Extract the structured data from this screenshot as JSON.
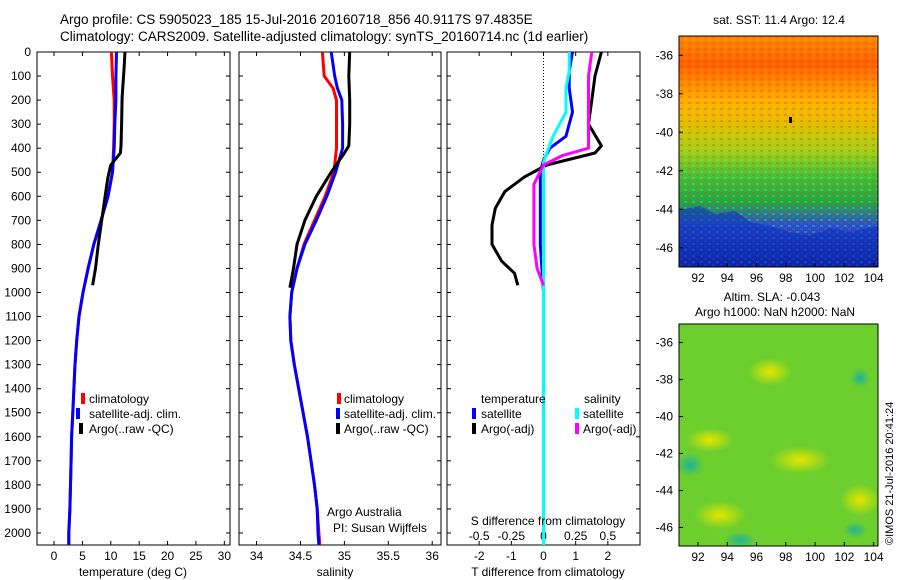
{
  "header": {
    "line1": "Argo profile: CS 5905023_185 15-Jul-2016 20160718_856 40.9117S 97.4835E",
    "line2": "Climatology: CARS2009. Satellite-adjusted climatology: synTS_20160714.nc (1d earlier)"
  },
  "depth_ticks": [
    "0",
    "100",
    "200",
    "300",
    "400",
    "500",
    "600",
    "700",
    "800",
    "900",
    "1000",
    "1100",
    "1200",
    "1300",
    "1400",
    "1500",
    "1600",
    "1700",
    "1800",
    "1900",
    "2000"
  ],
  "colors": {
    "climatology": "#ff0000",
    "satellite": "#0000ff",
    "argo": "#000000",
    "sat_salinity": "#00ffff",
    "argo_salinity": "#ff00ff"
  },
  "panel_notes": {
    "argo_australia": "Argo Australia",
    "pi": "PI: Susan Wijffels"
  },
  "map_sst": {
    "title": "sat. SST: 11.4 Argo: 12.4",
    "lat_ticks": [
      "-36",
      "-38",
      "-40",
      "-42",
      "-44",
      "-46"
    ],
    "lon_ticks": [
      "92",
      "94",
      "96",
      "98",
      "100",
      "102",
      "104"
    ]
  },
  "map_sla": {
    "title1": "Altim. SLA: -0.043",
    "title2": "Argo h1000: NaN h2000: NaN",
    "lat_ticks": [
      "-36",
      "-38",
      "-40",
      "-42",
      "-44",
      "-46"
    ],
    "lon_ticks": [
      "92",
      "94",
      "96",
      "98",
      "100",
      "102",
      "104"
    ]
  },
  "stamp": "©IMOS 21-Jul-2016 20:41:24",
  "chart_data": [
    {
      "type": "line",
      "xlabel": "temperature (deg C)",
      "ylabel": "",
      "xlim": [
        -3,
        31
      ],
      "ylim": [
        2050,
        0
      ],
      "x_ticks": [
        "0",
        "5",
        "10",
        "15",
        "20",
        "25",
        "30"
      ],
      "legend": [
        "climatology",
        "satellite-adj. clim.",
        "Argo(..raw -QC)"
      ],
      "series": [
        {
          "name": "climatology",
          "color": "#ff0000",
          "points": [
            [
              10.1,
              0
            ],
            [
              10.3,
              100
            ],
            [
              10.6,
              200
            ],
            [
              10.6,
              300
            ],
            [
              10.5,
              400
            ],
            [
              10.3,
              500
            ],
            [
              9.5,
              600
            ],
            [
              8.3,
              700
            ],
            [
              7.0,
              800
            ],
            [
              6.0,
              900
            ],
            [
              5.1,
              1000
            ],
            [
              4.4,
              1100
            ],
            [
              4.0,
              1200
            ],
            [
              3.7,
              1300
            ],
            [
              3.5,
              1400
            ],
            [
              3.3,
              1500
            ],
            [
              3.1,
              1600
            ],
            [
              3.0,
              1700
            ],
            [
              2.9,
              1800
            ],
            [
              2.8,
              1900
            ],
            [
              2.6,
              2000
            ],
            [
              2.6,
              2050
            ]
          ]
        },
        {
          "name": "satellite-adj. clim.",
          "color": "#0000ff",
          "points": [
            [
              11.0,
              0
            ],
            [
              10.9,
              100
            ],
            [
              10.9,
              200
            ],
            [
              10.7,
              300
            ],
            [
              10.6,
              400
            ],
            [
              10.3,
              500
            ],
            [
              9.5,
              600
            ],
            [
              8.3,
              700
            ],
            [
              7.0,
              800
            ],
            [
              6.0,
              900
            ],
            [
              5.1,
              1000
            ],
            [
              4.4,
              1100
            ],
            [
              4.0,
              1200
            ],
            [
              3.7,
              1300
            ],
            [
              3.5,
              1400
            ],
            [
              3.3,
              1500
            ],
            [
              3.1,
              1600
            ],
            [
              3.0,
              1700
            ],
            [
              2.9,
              1800
            ],
            [
              2.8,
              1900
            ],
            [
              2.6,
              2000
            ],
            [
              2.6,
              2050
            ]
          ]
        },
        {
          "name": "Argo(..raw -QC)",
          "color": "#000000",
          "points": [
            [
              12.5,
              0
            ],
            [
              12.3,
              80
            ],
            [
              12.0,
              190
            ],
            [
              11.9,
              300
            ],
            [
              11.8,
              390
            ],
            [
              11.7,
              420
            ],
            [
              10.0,
              470
            ],
            [
              9.5,
              520
            ],
            [
              9.0,
              600
            ],
            [
              8.4,
              700
            ],
            [
              7.8,
              800
            ],
            [
              7.3,
              900
            ],
            [
              6.8,
              970
            ]
          ]
        }
      ]
    },
    {
      "type": "line",
      "xlabel": "salinity",
      "ylabel": "",
      "xlim": [
        33.8,
        36.1
      ],
      "ylim": [
        2050,
        0
      ],
      "x_ticks": [
        "34",
        "34.5",
        "35",
        "35.5",
        "36"
      ],
      "legend": [
        "climatology",
        "satellite-adj. clim.",
        "Argo(..raw -QC)"
      ],
      "series": [
        {
          "name": "climatology",
          "color": "#ff0000",
          "points": [
            [
              34.75,
              0
            ],
            [
              34.77,
              100
            ],
            [
              34.87,
              150
            ],
            [
              34.91,
              200
            ],
            [
              34.91,
              300
            ],
            [
              34.91,
              400
            ],
            [
              34.88,
              500
            ],
            [
              34.78,
              600
            ],
            [
              34.66,
              700
            ],
            [
              34.54,
              800
            ],
            [
              34.46,
              900
            ],
            [
              34.4,
              1000
            ],
            [
              34.38,
              1100
            ],
            [
              34.39,
              1200
            ],
            [
              34.43,
              1300
            ],
            [
              34.48,
              1400
            ],
            [
              34.53,
              1500
            ],
            [
              34.58,
              1600
            ],
            [
              34.62,
              1700
            ],
            [
              34.66,
              1800
            ],
            [
              34.69,
              1900
            ],
            [
              34.71,
              2000
            ],
            [
              34.72,
              2050
            ]
          ]
        },
        {
          "name": "satellite-adj. clim.",
          "color": "#0000ff",
          "points": [
            [
              34.85,
              0
            ],
            [
              34.89,
              100
            ],
            [
              34.92,
              150
            ],
            [
              34.97,
              200
            ],
            [
              34.98,
              300
            ],
            [
              34.98,
              400
            ],
            [
              34.9,
              500
            ],
            [
              34.8,
              600
            ],
            [
              34.68,
              700
            ],
            [
              34.55,
              800
            ],
            [
              34.46,
              900
            ],
            [
              34.4,
              1000
            ],
            [
              34.38,
              1100
            ],
            [
              34.39,
              1200
            ],
            [
              34.43,
              1300
            ],
            [
              34.48,
              1400
            ],
            [
              34.53,
              1500
            ],
            [
              34.58,
              1600
            ],
            [
              34.62,
              1700
            ],
            [
              34.66,
              1800
            ],
            [
              34.69,
              1900
            ],
            [
              34.7,
              2000
            ],
            [
              34.71,
              2050
            ]
          ]
        },
        {
          "name": "Argo(..raw -QC)",
          "color": "#000000",
          "points": [
            [
              35.06,
              0
            ],
            [
              35.05,
              100
            ],
            [
              35.06,
              200
            ],
            [
              35.06,
              300
            ],
            [
              35.05,
              390
            ],
            [
              35.0,
              420
            ],
            [
              34.85,
              500
            ],
            [
              34.68,
              600
            ],
            [
              34.55,
              700
            ],
            [
              34.46,
              800
            ],
            [
              34.42,
              900
            ],
            [
              34.38,
              980
            ]
          ]
        }
      ]
    },
    {
      "type": "line",
      "title": "",
      "xlabel": "T difference from climatology",
      "xlabel2": "S difference from climatology",
      "xlim": [
        -3,
        3
      ],
      "ylim": [
        2050,
        0
      ],
      "x_ticks": [
        [
          "-2",
          -2
        ],
        [
          "-1",
          -1
        ],
        [
          "0",
          0
        ],
        [
          "1",
          1
        ],
        [
          "2",
          2
        ]
      ],
      "s_ticks": [
        [
          "-0.5",
          -2
        ],
        [
          "-0.25",
          -1
        ],
        [
          "0",
          0
        ],
        [
          "0.25",
          1
        ],
        [
          "0.5",
          2
        ]
      ],
      "legend_temperature_title": "temperature",
      "legend_salinity_title": "salinity",
      "legend": [
        "satellite",
        "Argo(-adj)",
        "satellite",
        "Argo(-adj)"
      ],
      "series": [
        {
          "name": "satellite",
          "group": "temperature",
          "color": "#0000ff",
          "points": [
            [
              0.9,
              0
            ],
            [
              0.8,
              80
            ],
            [
              0.8,
              150
            ],
            [
              0.9,
              250
            ],
            [
              0.8,
              300
            ],
            [
              0.7,
              350
            ],
            [
              0.2,
              400
            ],
            [
              0,
              450
            ],
            [
              -0.1,
              500
            ],
            [
              -0.1,
              600
            ],
            [
              -0.1,
              700
            ],
            [
              -0.1,
              800
            ],
            [
              -0.05,
              900
            ],
            [
              0,
              1000
            ],
            [
              0,
              2050
            ]
          ]
        },
        {
          "name": "Argo(-adj)",
          "group": "temperature",
          "color": "#000000",
          "points": [
            [
              1.8,
              0
            ],
            [
              1.6,
              100
            ],
            [
              1.5,
              200
            ],
            [
              1.4,
              300
            ],
            [
              1.8,
              390
            ],
            [
              1.6,
              420
            ],
            [
              0.1,
              470
            ],
            [
              -0.6,
              520
            ],
            [
              -1.2,
              580
            ],
            [
              -1.5,
              650
            ],
            [
              -1.6,
              720
            ],
            [
              -1.6,
              800
            ],
            [
              -1.3,
              870
            ],
            [
              -0.9,
              920
            ],
            [
              -0.8,
              970
            ]
          ]
        },
        {
          "name": "satellite",
          "group": "salinity",
          "color": "#00ffff",
          "points": [
            [
              0.8,
              0
            ],
            [
              0.8,
              80
            ],
            [
              0.7,
              150
            ],
            [
              0.7,
              200
            ],
            [
              0.7,
              250
            ],
            [
              0.3,
              350
            ],
            [
              0.1,
              420
            ],
            [
              0,
              460
            ],
            [
              0,
              2050
            ]
          ]
        },
        {
          "name": "Argo(-adj)",
          "group": "salinity",
          "color": "#ff00ff",
          "points": [
            [
              1.5,
              0
            ],
            [
              1.4,
              100
            ],
            [
              1.4,
              200
            ],
            [
              1.4,
              300
            ],
            [
              1.4,
              400
            ],
            [
              0.6,
              430
            ],
            [
              0,
              470
            ],
            [
              -0.3,
              550
            ],
            [
              -0.3,
              700
            ],
            [
              -0.3,
              800
            ],
            [
              -0.2,
              900
            ],
            [
              0,
              970
            ]
          ]
        }
      ]
    }
  ]
}
